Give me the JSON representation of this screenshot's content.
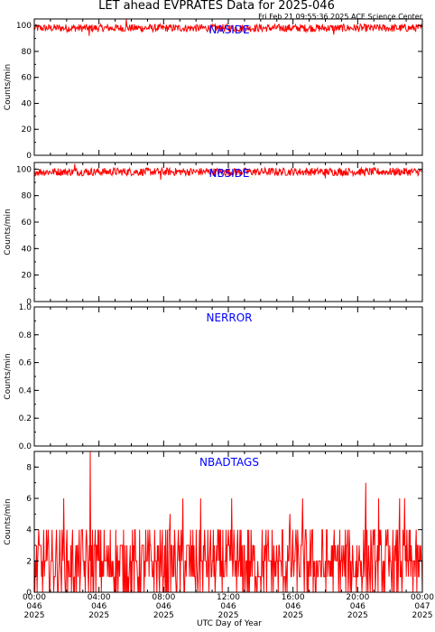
{
  "header": {
    "title": "LET ahead EVPRATES Data for 2025-046",
    "stamp": "Fri Feb 21 09:55:36 2025 ACE Science Center"
  },
  "xaxis": {
    "label": "UTC Day of Year",
    "ticks": [
      {
        "time": "00:00",
        "doy": "046",
        "year": "2025"
      },
      {
        "time": "04:00",
        "doy": "046",
        "year": "2025"
      },
      {
        "time": "08:00",
        "doy": "046",
        "year": "2025"
      },
      {
        "time": "12:00",
        "doy": "046",
        "year": "2025"
      },
      {
        "time": "16:00",
        "doy": "046",
        "year": "2025"
      },
      {
        "time": "20:00",
        "doy": "046",
        "year": "2025"
      },
      {
        "time": "00:00",
        "doy": "047",
        "year": "2025"
      }
    ]
  },
  "colors": {
    "line": "#ff0000",
    "title": "#0000ff",
    "axis": "#000000"
  },
  "chart_data": [
    {
      "type": "line",
      "title": "NASIDE",
      "ylabel": "Counts/min",
      "xlim": [
        0,
        24
      ],
      "ylim": [
        0,
        105
      ],
      "yticks": [
        0,
        20,
        40,
        60,
        80,
        100
      ],
      "grid": false,
      "series": [
        {
          "level": 98,
          "spread": 3,
          "spikes": [
            {
              "x": 5.7,
              "y": 105
            },
            {
              "x": 3.4,
              "y": 92
            },
            {
              "x": 18.5,
              "y": 93
            }
          ]
        }
      ]
    },
    {
      "type": "line",
      "title": "NBSIDE",
      "ylabel": "Counts/min",
      "xlim": [
        0,
        24
      ],
      "ylim": [
        0,
        105
      ],
      "yticks": [
        0,
        20,
        40,
        60,
        80,
        100
      ],
      "grid": false,
      "series": [
        {
          "level": 98,
          "spread": 3,
          "spikes": [
            {
              "x": 7.8,
              "y": 92
            },
            {
              "x": 18.0,
              "y": 93
            },
            {
              "x": 2.5,
              "y": 104
            }
          ]
        }
      ]
    },
    {
      "type": "line",
      "title": "NERROR",
      "ylabel": "Counts/min",
      "xlim": [
        0,
        24
      ],
      "ylim": [
        0,
        1.0
      ],
      "yticks": [
        0.0,
        0.2,
        0.4,
        0.6,
        0.8,
        1.0
      ],
      "yformat": "fixed1",
      "grid": false,
      "series": [
        {
          "level": 0,
          "spread": 0,
          "spikes": []
        }
      ]
    },
    {
      "type": "line",
      "title": "NBADTAGS",
      "ylabel": "Counts/min",
      "xlim": [
        0,
        24
      ],
      "ylim": [
        0,
        9
      ],
      "yticks": [
        0,
        2,
        4,
        6,
        8
      ],
      "grid": false,
      "series": [
        {
          "level": 2,
          "spread": 2,
          "spikes": [
            {
              "x": 3.45,
              "y": 9
            },
            {
              "x": 1.8,
              "y": 6
            },
            {
              "x": 20.5,
              "y": 7
            },
            {
              "x": 9.2,
              "y": 6
            },
            {
              "x": 10.3,
              "y": 6
            },
            {
              "x": 12.2,
              "y": 6
            },
            {
              "x": 16.6,
              "y": 6
            },
            {
              "x": 21.3,
              "y": 6
            },
            {
              "x": 22.6,
              "y": 6
            },
            {
              "x": 22.9,
              "y": 6
            },
            {
              "x": 8.4,
              "y": 5
            },
            {
              "x": 15.8,
              "y": 5
            }
          ]
        }
      ]
    }
  ]
}
